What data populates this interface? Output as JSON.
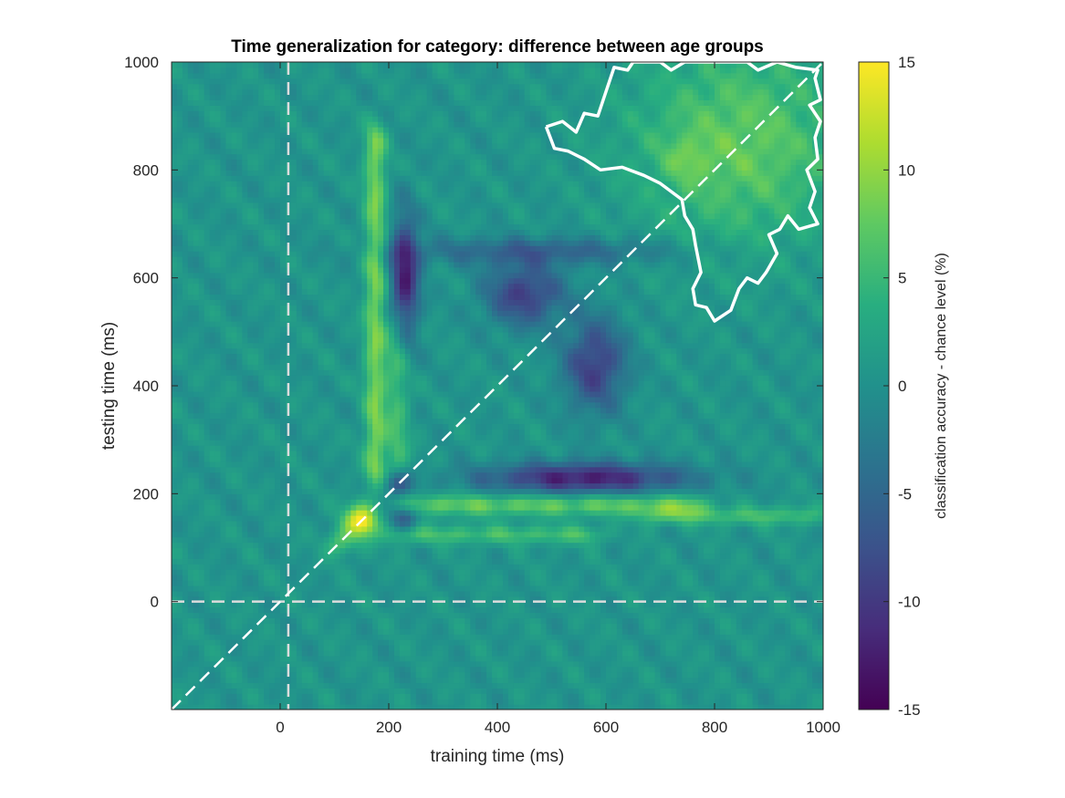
{
  "chart_data": [
    {
      "type": "heatmap",
      "title": "Time generalization for category: difference between age groups",
      "xlabel": "training time (ms)",
      "ylabel": "testing time (ms)",
      "xlim": [
        -200,
        1000
      ],
      "ylim": [
        -200,
        1000
      ],
      "x_ticks": [
        0,
        200,
        400,
        600,
        800,
        1000
      ],
      "y_ticks": [
        0,
        200,
        400,
        600,
        800,
        1000
      ],
      "x_tick_labels": [
        "0",
        "200",
        "400",
        "600",
        "800",
        "1000"
      ],
      "y_tick_labels": [
        "0",
        "200",
        "400",
        "600",
        "800",
        "1000"
      ],
      "colormap": "viridis",
      "clim": [
        -15,
        15
      ],
      "colorbar_label": "classification accuracy - chance level (%)",
      "colorbar_ticks": [
        -15,
        -10,
        -5,
        0,
        5,
        10,
        15
      ],
      "colorbar_tick_labels": [
        "-15",
        "-10",
        "-5",
        "0",
        "5",
        "10",
        "15"
      ],
      "reference_lines": [
        {
          "kind": "vertical",
          "x": 15,
          "style": "dashed",
          "color": "#dddddd"
        },
        {
          "kind": "horizontal",
          "y": 0,
          "style": "dashed",
          "color": "#dddddd"
        },
        {
          "kind": "diagonal",
          "from": [
            -200,
            -200
          ],
          "to": [
            1000,
            1000
          ],
          "style": "dashed",
          "color": "#ffffff"
        }
      ],
      "features": [
        {
          "type": "peak",
          "x": 150,
          "y": 150,
          "value": 15,
          "sx": 22,
          "sy": 22
        },
        {
          "type": "peak",
          "x": 110,
          "y": 110,
          "value": 6,
          "sx": 18,
          "sy": 18
        },
        {
          "type": "ridge_vertical",
          "x": 175,
          "y_range": [
            250,
            850
          ],
          "value": 8,
          "width": 14
        },
        {
          "type": "ridge_vertical",
          "x": 215,
          "y_range": [
            250,
            500
          ],
          "value": 5,
          "width": 16
        },
        {
          "type": "ridge_horizontal",
          "y": 180,
          "x_range": [
            250,
            750
          ],
          "value": 7,
          "width": 14
        },
        {
          "type": "ridge_horizontal",
          "y": 125,
          "x_range": [
            230,
            560
          ],
          "value": 5,
          "width": 12
        },
        {
          "type": "ridge_horizontal",
          "y": 160,
          "x_range": [
            700,
            960
          ],
          "value": 5,
          "width": 12
        },
        {
          "type": "trough",
          "x": 215,
          "y": 220,
          "value": -9,
          "sx": 18,
          "sy": 18
        },
        {
          "type": "trough",
          "x": 230,
          "y": 160,
          "value": -8,
          "sx": 18,
          "sy": 18
        },
        {
          "type": "trough",
          "x": 560,
          "y": 230,
          "value": -13,
          "sx": 130,
          "sy": 20
        },
        {
          "type": "trough",
          "x": 230,
          "y": 600,
          "value": -13,
          "sx": 18,
          "sy": 80
        },
        {
          "type": "trough",
          "x": 450,
          "y": 570,
          "value": -10,
          "sx": 50,
          "sy": 40
        },
        {
          "type": "trough",
          "x": 580,
          "y": 440,
          "value": -10,
          "sx": 40,
          "sy": 60
        },
        {
          "type": "trough",
          "x": 480,
          "y": 650,
          "value": -6,
          "sx": 180,
          "sy": 18
        },
        {
          "type": "plateau",
          "x": 850,
          "y": 850,
          "value": 7,
          "sx": 140,
          "sy": 130
        },
        {
          "type": "peak",
          "x": 750,
          "y": 820,
          "value": 3,
          "sx": 30,
          "sy": 30
        }
      ],
      "significance_contour": {
        "color": "#ffffff",
        "points": [
          [
            490,
            880
          ],
          [
            520,
            890
          ],
          [
            545,
            870
          ],
          [
            560,
            905
          ],
          [
            585,
            900
          ],
          [
            600,
            945
          ],
          [
            615,
            990
          ],
          [
            640,
            985
          ],
          [
            650,
            1000
          ],
          [
            700,
            1000
          ],
          [
            720,
            985
          ],
          [
            745,
            1000
          ],
          [
            860,
            1000
          ],
          [
            880,
            985
          ],
          [
            915,
            1000
          ],
          [
            950,
            990
          ],
          [
            990,
            985
          ],
          [
            985,
            970
          ],
          [
            995,
            930
          ],
          [
            975,
            920
          ],
          [
            995,
            890
          ],
          [
            985,
            860
          ],
          [
            990,
            820
          ],
          [
            970,
            800
          ],
          [
            985,
            760
          ],
          [
            975,
            730
          ],
          [
            990,
            700
          ],
          [
            955,
            690
          ],
          [
            935,
            715
          ],
          [
            920,
            690
          ],
          [
            900,
            680
          ],
          [
            915,
            645
          ],
          [
            895,
            610
          ],
          [
            880,
            590
          ],
          [
            860,
            600
          ],
          [
            845,
            580
          ],
          [
            830,
            540
          ],
          [
            800,
            520
          ],
          [
            785,
            545
          ],
          [
            765,
            550
          ],
          [
            760,
            580
          ],
          [
            775,
            610
          ],
          [
            765,
            660
          ],
          [
            760,
            690
          ],
          [
            745,
            715
          ],
          [
            740,
            745
          ],
          [
            720,
            760
          ],
          [
            700,
            775
          ],
          [
            670,
            790
          ],
          [
            630,
            805
          ],
          [
            590,
            800
          ],
          [
            560,
            820
          ],
          [
            530,
            835
          ],
          [
            505,
            840
          ],
          [
            490,
            880
          ]
        ]
      }
    }
  ]
}
